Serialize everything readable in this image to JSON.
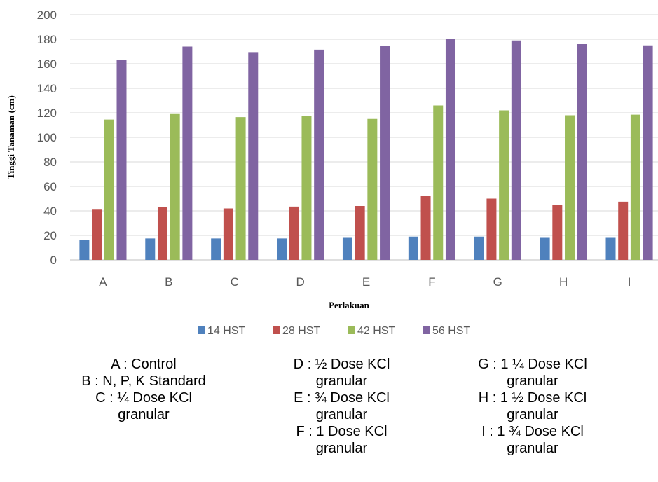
{
  "chart_data": {
    "type": "bar",
    "title": "",
    "xlabel": "Perlakuan",
    "ylabel": "Tinggi Tanaman (cm)",
    "ylim": [
      0,
      200
    ],
    "yticks": [
      0,
      20,
      40,
      60,
      80,
      100,
      120,
      140,
      160,
      180,
      200
    ],
    "grid": true,
    "legend_position": "bottom",
    "categories": [
      "A",
      "B",
      "C",
      "D",
      "E",
      "F",
      "G",
      "H",
      "I"
    ],
    "series": [
      {
        "name": "14 HST",
        "color": "#4F81BD",
        "values": [
          16.5,
          17.5,
          17.5,
          17.5,
          18,
          19,
          19,
          18,
          18
        ]
      },
      {
        "name": "28 HST",
        "color": "#C0504D",
        "values": [
          41,
          43,
          42,
          43.5,
          44,
          52,
          50,
          45,
          47.5
        ]
      },
      {
        "name": "42 HST",
        "color": "#9BBB59",
        "values": [
          114.5,
          119,
          116.5,
          117.5,
          115,
          126,
          122,
          118,
          118.5
        ]
      },
      {
        "name": "56 HST",
        "color": "#8064A2",
        "values": [
          163,
          174,
          169.5,
          171.5,
          174.5,
          180.5,
          179,
          176,
          175
        ]
      }
    ]
  },
  "notes": [
    [
      "A : Control",
      "B : N, P, K Standard",
      "C : ¼ Dose KCl",
      "granular"
    ],
    [
      "D : ½ Dose KCl",
      "granular",
      "E : ¾  Dose KCl",
      "granular",
      "F : 1 Dose KCl",
      "granular"
    ],
    [
      "G : 1 ¼ Dose KCl",
      "granular",
      "H : 1 ½ Dose KCl",
      "granular",
      "I : 1 ¾  Dose KCl",
      "granular"
    ]
  ]
}
